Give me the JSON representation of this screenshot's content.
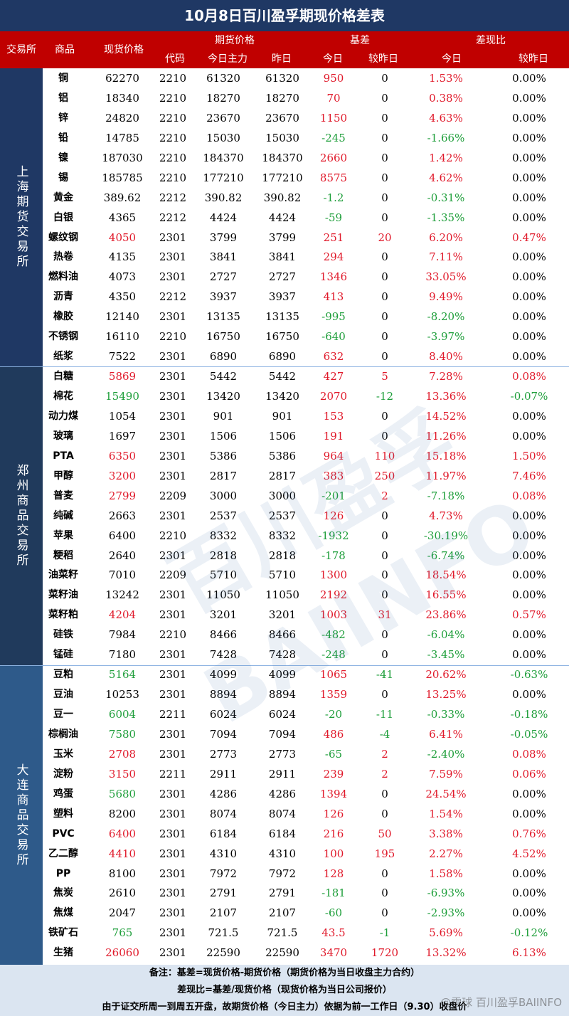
{
  "title": "10月8日百川盈孚期现价格差表",
  "header": {
    "exchange": "交易所",
    "product": "商品",
    "spot": "现货价格",
    "futures_group": "期货价格",
    "code": "代码",
    "today_main": "今日主力",
    "yesterday": "昨日",
    "basis_group": "基差",
    "today": "今日",
    "vs_yesterday": "较昨日",
    "ratio_group": "差现比",
    "ratio_today": "今日",
    "ratio_vs_yesterday": "较昨日"
  },
  "exchanges": [
    {
      "name": "上海期货交易所",
      "rows": 15
    },
    {
      "name": "郑州商品交易所",
      "rows": 15
    },
    {
      "name": "大连商品交易所",
      "rows": 15
    }
  ],
  "rows": [
    [
      "铜",
      "62270",
      "2210",
      "61320",
      "61320",
      "950",
      "0",
      "1.53%",
      "0.00%"
    ],
    [
      "铝",
      "18340",
      "2210",
      "18270",
      "18270",
      "70",
      "0",
      "0.38%",
      "0.00%"
    ],
    [
      "锌",
      "24820",
      "2210",
      "23670",
      "23670",
      "1150",
      "0",
      "4.63%",
      "0.00%"
    ],
    [
      "铅",
      "14785",
      "2210",
      "15030",
      "15030",
      "-245",
      "0",
      "-1.66%",
      "0.00%"
    ],
    [
      "镍",
      "187030",
      "2210",
      "184370",
      "184370",
      "2660",
      "0",
      "1.42%",
      "0.00%"
    ],
    [
      "锡",
      "185785",
      "2210",
      "177210",
      "177210",
      "8575",
      "0",
      "4.62%",
      "0.00%"
    ],
    [
      "黄金",
      "389.62",
      "2212",
      "390.82",
      "390.82",
      "-1.2",
      "0",
      "-0.31%",
      "0.00%"
    ],
    [
      "白银",
      "4365",
      "2212",
      "4424",
      "4424",
      "-59",
      "0",
      "-1.35%",
      "0.00%"
    ],
    [
      "螺纹钢",
      "4050",
      "2301",
      "3799",
      "3799",
      "251",
      "20",
      "6.20%",
      "0.47%"
    ],
    [
      "热卷",
      "4135",
      "2301",
      "3841",
      "3841",
      "294",
      "0",
      "7.11%",
      "0.00%"
    ],
    [
      "燃料油",
      "4073",
      "2301",
      "2727",
      "2727",
      "1346",
      "0",
      "33.05%",
      "0.00%"
    ],
    [
      "沥青",
      "4350",
      "2212",
      "3937",
      "3937",
      "413",
      "0",
      "9.49%",
      "0.00%"
    ],
    [
      "橡胶",
      "12140",
      "2301",
      "13135",
      "13135",
      "-995",
      "0",
      "-8.20%",
      "0.00%"
    ],
    [
      "不锈钢",
      "16110",
      "2210",
      "16750",
      "16750",
      "-640",
      "0",
      "-3.97%",
      "0.00%"
    ],
    [
      "纸浆",
      "7522",
      "2301",
      "6890",
      "6890",
      "632",
      "0",
      "8.40%",
      "0.00%"
    ],
    [
      "白糖",
      "5869",
      "2301",
      "5442",
      "5442",
      "427",
      "5",
      "7.28%",
      "0.08%"
    ],
    [
      "棉花",
      "15490",
      "2301",
      "13420",
      "13420",
      "2070",
      "-12",
      "13.36%",
      "-0.07%"
    ],
    [
      "动力煤",
      "1054",
      "2301",
      "901",
      "901",
      "153",
      "0",
      "14.52%",
      "0.00%"
    ],
    [
      "玻璃",
      "1697",
      "2301",
      "1506",
      "1506",
      "191",
      "0",
      "11.26%",
      "0.00%"
    ],
    [
      "PTA",
      "6350",
      "2301",
      "5386",
      "5386",
      "964",
      "110",
      "15.18%",
      "1.50%"
    ],
    [
      "甲醇",
      "3200",
      "2301",
      "2817",
      "2817",
      "383",
      "250",
      "11.97%",
      "7.46%"
    ],
    [
      "普麦",
      "2799",
      "2209",
      "3000",
      "3000",
      "-201",
      "2",
      "-7.18%",
      "0.08%"
    ],
    [
      "纯碱",
      "2663",
      "2301",
      "2537",
      "2537",
      "126",
      "0",
      "4.73%",
      "0.00%"
    ],
    [
      "苹果",
      "6400",
      "2210",
      "8332",
      "8332",
      "-1932",
      "0",
      "-30.19%",
      "0.00%"
    ],
    [
      "粳稻",
      "2640",
      "2301",
      "2818",
      "2818",
      "-178",
      "0",
      "-6.74%",
      "0.00%"
    ],
    [
      "油菜籽",
      "7010",
      "2209",
      "5710",
      "5710",
      "1300",
      "0",
      "18.54%",
      "0.00%"
    ],
    [
      "菜籽油",
      "13242",
      "2301",
      "11050",
      "11050",
      "2192",
      "0",
      "16.55%",
      "0.00%"
    ],
    [
      "菜籽粕",
      "4204",
      "2301",
      "3201",
      "3201",
      "1003",
      "31",
      "23.86%",
      "0.57%"
    ],
    [
      "硅铁",
      "7984",
      "2210",
      "8466",
      "8466",
      "-482",
      "0",
      "-6.04%",
      "0.00%"
    ],
    [
      "锰硅",
      "7180",
      "2301",
      "7428",
      "7428",
      "-248",
      "0",
      "-3.45%",
      "0.00%"
    ],
    [
      "豆粕",
      "5164",
      "2301",
      "4099",
      "4099",
      "1065",
      "-41",
      "20.62%",
      "-0.63%"
    ],
    [
      "豆油",
      "10253",
      "2301",
      "8894",
      "8894",
      "1359",
      "0",
      "13.25%",
      "0.00%"
    ],
    [
      "豆一",
      "6004",
      "2211",
      "6024",
      "6024",
      "-20",
      "-11",
      "-0.33%",
      "-0.18%"
    ],
    [
      "棕榈油",
      "7580",
      "2301",
      "7094",
      "7094",
      "486",
      "-4",
      "6.41%",
      "-0.05%"
    ],
    [
      "玉米",
      "2708",
      "2301",
      "2773",
      "2773",
      "-65",
      "2",
      "-2.40%",
      "0.08%"
    ],
    [
      "淀粉",
      "3150",
      "2211",
      "2911",
      "2911",
      "239",
      "2",
      "7.59%",
      "0.06%"
    ],
    [
      "鸡蛋",
      "5680",
      "2301",
      "4286",
      "4286",
      "1394",
      "0",
      "24.54%",
      "0.00%"
    ],
    [
      "塑料",
      "8200",
      "2301",
      "8074",
      "8074",
      "126",
      "0",
      "1.54%",
      "0.00%"
    ],
    [
      "PVC",
      "6400",
      "2301",
      "6184",
      "6184",
      "216",
      "50",
      "3.38%",
      "0.76%"
    ],
    [
      "乙二醇",
      "4410",
      "2301",
      "4310",
      "4310",
      "100",
      "195",
      "2.27%",
      "4.52%"
    ],
    [
      "PP",
      "8100",
      "2301",
      "7972",
      "7972",
      "128",
      "0",
      "1.58%",
      "0.00%"
    ],
    [
      "焦炭",
      "2610",
      "2301",
      "2791",
      "2791",
      "-181",
      "0",
      "-6.93%",
      "0.00%"
    ],
    [
      "焦煤",
      "2047",
      "2301",
      "2107",
      "2107",
      "-60",
      "0",
      "-2.93%",
      "0.00%"
    ],
    [
      "铁矿石",
      "765",
      "2301",
      "721.5",
      "721.5",
      "43.5",
      "-1",
      "5.69%",
      "-0.12%"
    ],
    [
      "生猪",
      "26060",
      "2301",
      "22590",
      "22590",
      "3470",
      "1720",
      "13.32%",
      "6.13%"
    ]
  ],
  "spot_colors": {
    "螺纹钢": "red",
    "白糖": "red",
    "棉花": "green",
    "PTA": "red",
    "甲醇": "red",
    "普麦": "red",
    "菜籽粕": "red",
    "豆粕": "green",
    "豆一": "green",
    "棕榈油": "green",
    "玉米": "red",
    "淀粉": "red",
    "鸡蛋": "green",
    "PVC": "red",
    "乙二醇": "red",
    "铁矿石": "green",
    "生猪": "red"
  },
  "notes": [
    "备注：基差=现货价格-期货价格（期货价格为当日收盘主力合约）",
    "差现比=基差/现货价格（现货价格为当日公司报价）",
    "由于证交所周一到周五开盘，故期货价格（今日主力）依据为前一工作日（9.30）收盘价"
  ],
  "watermark": "百川盈孚 BAIINFO",
  "credit": "@雪球 百川盈孚BAIINFO",
  "colors": {
    "title_bg": "#1f3864",
    "header_bg": "#c00000",
    "positive": "#e0192a",
    "negative": "#1e9e3a"
  }
}
